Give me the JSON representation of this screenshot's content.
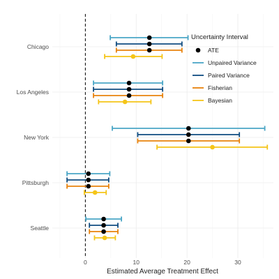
{
  "chart_data": {
    "type": "scatter",
    "title": "",
    "xlabel": "Estimated Average Treatment Effect",
    "ylabel": "",
    "xlim": [
      -6.5,
      37
    ],
    "xticks": [
      0,
      10,
      20,
      30
    ],
    "reference_line_x": 0,
    "grid": true,
    "legend_position": "top-right",
    "legend": {
      "title": "Uncertainty Interval",
      "point_label": "ATE",
      "point_color": "#000000"
    },
    "categories": [
      "Chicago",
      "Los Angeles",
      "New York",
      "Pittsburgh",
      "Seattle"
    ],
    "series": [
      {
        "name": "Unpaired Variance",
        "color": "#4aa6c6",
        "estimate": [
          12.6,
          8.6,
          20.3,
          0.6,
          3.6
        ],
        "lower": [
          4.9,
          1.6,
          5.3,
          -3.6,
          0.1
        ],
        "upper": [
          20.2,
          15.2,
          35.3,
          4.8,
          7.1
        ]
      },
      {
        "name": "Paired Variance",
        "color": "#0f4c81",
        "estimate": [
          12.6,
          8.6,
          20.3,
          0.6,
          3.6
        ],
        "lower": [
          6.1,
          1.6,
          10.3,
          -3.6,
          0.8
        ],
        "upper": [
          19.0,
          15.2,
          30.3,
          4.6,
          6.4
        ]
      },
      {
        "name": "Fisherian",
        "color": "#e8820c",
        "estimate": [
          12.6,
          8.6,
          20.3,
          0.6,
          3.6
        ],
        "lower": [
          6.1,
          1.6,
          10.3,
          -3.6,
          0.8
        ],
        "upper": [
          19.0,
          15.2,
          30.3,
          4.6,
          6.4
        ]
      },
      {
        "name": "Bayesian",
        "color": "#f5c518",
        "estimate": [
          9.4,
          7.8,
          25.0,
          1.9,
          3.8
        ],
        "lower": [
          3.8,
          2.6,
          14.1,
          -0.2,
          1.8
        ],
        "upper": [
          15.1,
          12.9,
          35.8,
          4.1,
          5.9
        ]
      }
    ]
  }
}
